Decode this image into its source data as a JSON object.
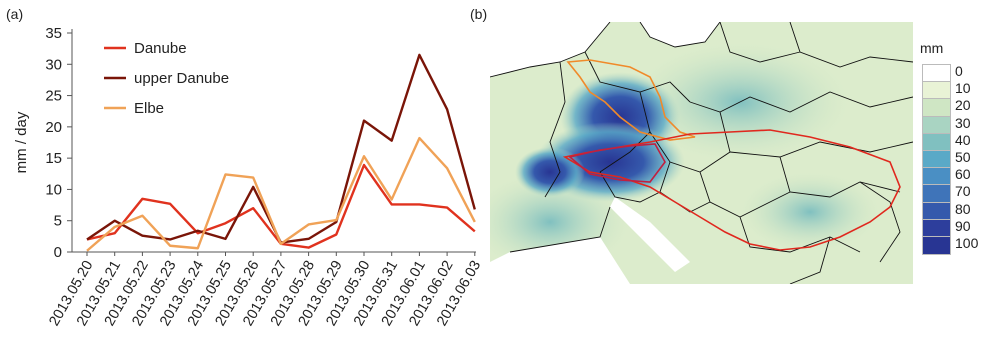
{
  "panels": {
    "a": "(a)",
    "b": "(b)"
  },
  "chart_data": {
    "type": "line",
    "categories": [
      "2013.05.20",
      "2013.05.21",
      "2013.05.22",
      "2013.05.23",
      "2013.05.24",
      "2013.05.25",
      "2013.05.26",
      "2013.05.27",
      "2013.05.28",
      "2013.05.29",
      "2013.05.30",
      "2013.05.31",
      "2013.06.01",
      "2013.06.02",
      "2013.06.03"
    ],
    "ylabel": "mm / day",
    "xlabel": "",
    "title": "",
    "ylim": [
      0,
      35
    ],
    "yticks": [
      0,
      5,
      10,
      15,
      20,
      25,
      30,
      35
    ],
    "legend_position": "top-left",
    "series": [
      {
        "name": "Danube",
        "color": "#e0321e",
        "values": [
          2.0,
          3.0,
          8.5,
          7.7,
          3.0,
          4.6,
          7.0,
          1.3,
          0.7,
          2.8,
          13.9,
          7.6,
          7.6,
          7.1,
          3.3
        ]
      },
      {
        "name": "upper Danube",
        "color": "#7a1508",
        "values": [
          2.0,
          5.0,
          2.6,
          2.0,
          3.4,
          2.1,
          10.4,
          1.5,
          2.1,
          4.8,
          21.0,
          17.8,
          31.5,
          22.8,
          6.8
        ]
      },
      {
        "name": "Elbe",
        "color": "#f0a257",
        "values": [
          0.2,
          4.0,
          5.8,
          1.0,
          0.6,
          12.4,
          11.9,
          1.3,
          4.4,
          5.1,
          15.3,
          8.4,
          18.2,
          13.4,
          4.8
        ]
      }
    ]
  },
  "map": {
    "colorbar_title": "mm",
    "colorbar": [
      {
        "label": "0",
        "color": "#ffffff"
      },
      {
        "label": "10",
        "color": "#e9f3d6"
      },
      {
        "label": "20",
        "color": "#cfe6c4"
      },
      {
        "label": "30",
        "color": "#a9d4c2"
      },
      {
        "label": "40",
        "color": "#80c0c0"
      },
      {
        "label": "50",
        "color": "#5aa9c7"
      },
      {
        "label": "60",
        "color": "#4a8fc4"
      },
      {
        "label": "70",
        "color": "#3f74b9"
      },
      {
        "label": "80",
        "color": "#3559ac"
      },
      {
        "label": "90",
        "color": "#2d3e9c"
      },
      {
        "label": "100",
        "color": "#283593"
      }
    ]
  }
}
